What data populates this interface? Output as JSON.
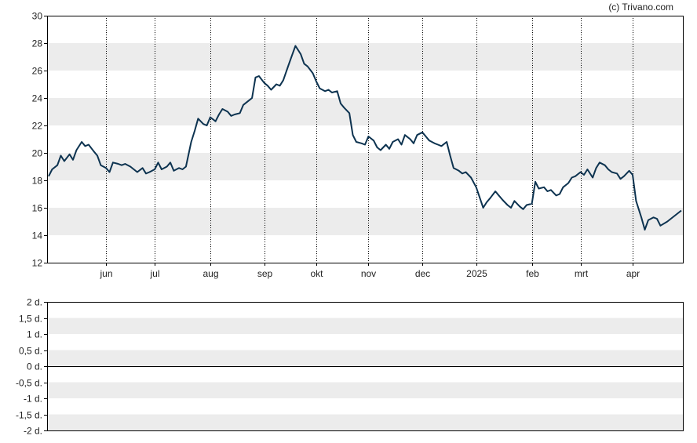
{
  "copyright": "(c) Trivano.com",
  "colors": {
    "line": "#0d3350",
    "band": "#ececec",
    "frame": "#000000"
  },
  "chart_data": [
    {
      "type": "line",
      "x_tick_labels": [
        "jun",
        "jul",
        "aug",
        "sep",
        "okt",
        "nov",
        "dec",
        "2025",
        "feb",
        "mrt",
        "apr"
      ],
      "y_ticks": [
        12,
        14,
        16,
        18,
        20,
        22,
        24,
        26,
        28,
        30
      ],
      "ylim": [
        12,
        30
      ],
      "grid": "vertical dotted lines at month ticks; alternating horizontal bands",
      "series": [
        {
          "x": [
            "2024-05-01",
            "2024-05-03",
            "2024-05-06",
            "2024-05-08",
            "2024-05-10",
            "2024-05-13",
            "2024-05-15",
            "2024-05-17",
            "2024-05-20",
            "2024-05-22",
            "2024-05-24",
            "2024-05-27",
            "2024-05-29",
            "2024-05-31",
            "2024-06-03",
            "2024-06-05",
            "2024-06-07",
            "2024-06-10",
            "2024-06-12",
            "2024-06-14",
            "2024-06-17",
            "2024-06-19",
            "2024-06-21",
            "2024-06-24",
            "2024-06-26",
            "2024-06-28",
            "2024-07-01",
            "2024-07-03",
            "2024-07-05",
            "2024-07-08",
            "2024-07-10",
            "2024-07-12",
            "2024-07-15",
            "2024-07-17",
            "2024-07-19",
            "2024-07-22",
            "2024-07-24",
            "2024-07-26",
            "2024-07-29",
            "2024-07-31",
            "2024-08-02",
            "2024-08-05",
            "2024-08-07",
            "2024-08-09",
            "2024-08-12",
            "2024-08-14",
            "2024-08-16",
            "2024-08-19",
            "2024-08-21",
            "2024-08-23",
            "2024-08-26",
            "2024-08-28",
            "2024-08-30",
            "2024-09-02",
            "2024-09-04",
            "2024-09-06",
            "2024-09-09",
            "2024-09-11",
            "2024-09-13",
            "2024-09-16",
            "2024-09-18",
            "2024-09-20",
            "2024-09-23",
            "2024-09-25",
            "2024-09-27",
            "2024-09-30",
            "2024-10-02",
            "2024-10-04",
            "2024-10-07",
            "2024-10-09",
            "2024-10-11",
            "2024-10-14",
            "2024-10-16",
            "2024-10-18",
            "2024-10-21",
            "2024-10-23",
            "2024-10-25",
            "2024-10-28",
            "2024-10-30",
            "2024-11-01",
            "2024-11-04",
            "2024-11-06",
            "2024-11-08",
            "2024-11-11",
            "2024-11-13",
            "2024-11-15",
            "2024-11-18",
            "2024-11-20",
            "2024-11-22",
            "2024-11-25",
            "2024-11-27",
            "2024-11-29",
            "2024-12-02",
            "2024-12-04",
            "2024-12-06",
            "2024-12-09",
            "2024-12-11",
            "2024-12-13",
            "2024-12-16",
            "2024-12-18",
            "2024-12-20",
            "2024-12-23",
            "2024-12-25",
            "2024-12-27",
            "2024-12-30",
            "2025-01-02",
            "2025-01-06",
            "2025-01-08",
            "2025-01-10",
            "2025-01-13",
            "2025-01-15",
            "2025-01-17",
            "2025-01-20",
            "2025-01-22",
            "2025-01-24",
            "2025-01-27",
            "2025-01-29",
            "2025-01-31",
            "2025-02-03",
            "2025-02-05",
            "2025-02-07",
            "2025-02-10",
            "2025-02-12",
            "2025-02-14",
            "2025-02-17",
            "2025-02-19",
            "2025-02-21",
            "2025-02-24",
            "2025-02-26",
            "2025-02-28",
            "2025-03-03",
            "2025-03-05",
            "2025-03-07",
            "2025-03-10",
            "2025-03-12",
            "2025-03-14",
            "2025-03-17",
            "2025-03-19",
            "2025-03-21",
            "2025-03-24",
            "2025-03-26",
            "2025-03-28",
            "2025-03-31",
            "2025-04-02",
            "2025-04-04",
            "2025-04-07",
            "2025-04-09",
            "2025-04-11",
            "2025-04-14",
            "2025-04-16",
            "2025-04-18",
            "2025-04-22",
            "2025-04-24",
            "2025-04-28",
            "2025-04-30"
          ],
          "values": [
            18.3,
            18.8,
            19.1,
            19.8,
            19.4,
            19.9,
            19.5,
            20.2,
            20.8,
            20.5,
            20.6,
            20.1,
            19.8,
            19.1,
            18.9,
            18.6,
            19.3,
            19.2,
            19.1,
            19.2,
            19.0,
            18.8,
            18.6,
            18.9,
            18.5,
            18.6,
            18.8,
            19.3,
            18.8,
            19.0,
            19.3,
            18.7,
            18.9,
            18.8,
            19.0,
            20.8,
            21.6,
            22.5,
            22.1,
            22.0,
            22.6,
            22.3,
            22.8,
            23.2,
            23.0,
            22.7,
            22.8,
            22.9,
            23.5,
            23.7,
            24.0,
            25.5,
            25.6,
            25.1,
            24.9,
            24.6,
            25.0,
            24.9,
            25.3,
            26.4,
            27.1,
            27.8,
            27.2,
            26.5,
            26.3,
            25.8,
            25.2,
            24.7,
            24.5,
            24.6,
            24.4,
            24.5,
            23.6,
            23.3,
            22.9,
            21.3,
            20.8,
            20.7,
            20.6,
            21.2,
            20.9,
            20.4,
            20.2,
            20.6,
            20.3,
            20.8,
            21.0,
            20.6,
            21.3,
            21.0,
            20.7,
            21.3,
            21.5,
            21.2,
            20.9,
            20.7,
            20.6,
            20.5,
            20.8,
            19.8,
            18.9,
            18.7,
            18.5,
            18.6,
            18.2,
            17.5,
            16.0,
            16.4,
            16.7,
            17.2,
            16.9,
            16.6,
            16.2,
            16.0,
            16.5,
            16.1,
            15.9,
            16.2,
            16.3,
            17.9,
            17.4,
            17.5,
            17.2,
            17.3,
            16.9,
            17.0,
            17.5,
            17.8,
            18.2,
            18.3,
            18.6,
            18.4,
            18.8,
            18.2,
            18.9,
            19.3,
            19.1,
            18.8,
            18.6,
            18.5,
            18.1,
            18.3,
            18.7,
            18.4,
            16.5,
            15.3,
            14.4,
            15.1,
            15.3,
            15.2,
            14.7,
            15.0,
            15.2,
            15.6,
            15.8
          ]
        }
      ]
    },
    {
      "type": "line",
      "y_tick_labels": [
        "2 d.",
        "1,5 d.",
        "1 d.",
        "0,5 d.",
        "0 d.",
        "-0,5 d.",
        "-1 d.",
        "-1,5 d.",
        "-2 d."
      ],
      "y_ticks": [
        2,
        1.5,
        1,
        0.5,
        0,
        -0.5,
        -1,
        -1.5,
        -2
      ],
      "ylim": [
        -2,
        2
      ],
      "zero_line": 0,
      "series": []
    }
  ]
}
